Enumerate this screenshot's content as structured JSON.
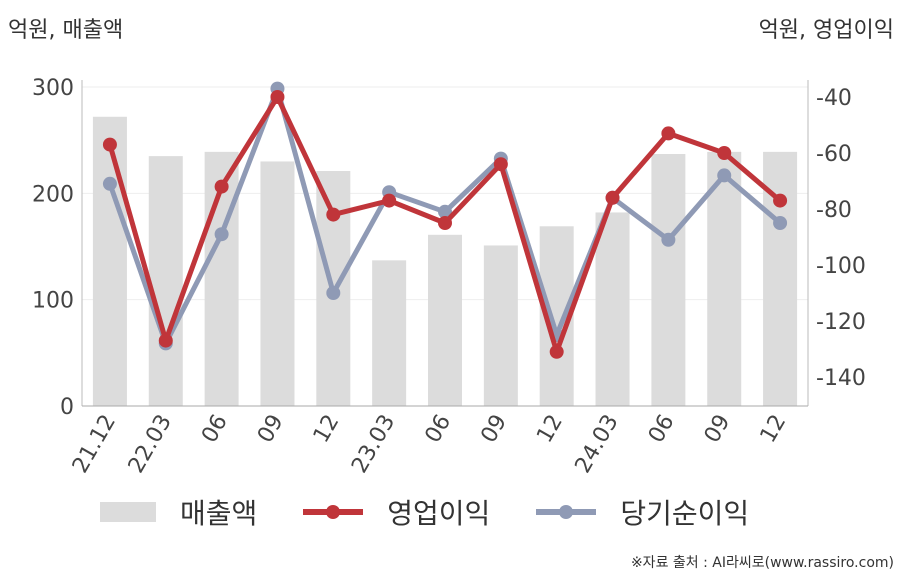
{
  "header": {
    "left_unit": "억원, 매출액",
    "right_unit": "억원, 영업이익"
  },
  "legend": {
    "revenue": "매출액",
    "operating_profit": "영업이익",
    "net_income": "당기순이익"
  },
  "source": "※자료 출처 : AI라씨로(www.rassiro.com)",
  "colors": {
    "revenue": "#dcdcdc",
    "operating_profit": "#c0353a",
    "net_income": "#8f9ab5"
  },
  "chart_data": {
    "type": "bar",
    "categories": [
      "21.12",
      "22.03",
      "06",
      "09",
      "12",
      "23.03",
      "06",
      "09",
      "12",
      "24.03",
      "06",
      "09",
      "12"
    ],
    "left_axis": {
      "ylim": [
        0,
        300
      ],
      "ticks": [
        "0",
        "100",
        "200",
        "300"
      ]
    },
    "right_axis": {
      "ylim": [
        -150,
        -35
      ],
      "ticks": [
        "-40",
        "-60",
        "-80",
        "-100",
        "-120",
        "-140"
      ]
    },
    "series": [
      {
        "name": "매출액",
        "axis": "left",
        "type": "bar",
        "values": [
          272,
          235,
          239,
          230,
          221,
          137,
          161,
          151,
          169,
          182,
          237,
          239,
          239
        ]
      },
      {
        "name": "영업이익",
        "axis": "right",
        "type": "line",
        "values": [
          -57,
          -127,
          -72,
          -40,
          -82,
          -77,
          -85,
          -64,
          -131,
          -76,
          -53,
          -60,
          -77
        ]
      },
      {
        "name": "당기순이익",
        "axis": "right",
        "type": "line",
        "values": [
          -71,
          -128,
          -89,
          -37,
          -110,
          -74,
          -81,
          -62,
          -125,
          -76,
          -91,
          -68,
          -85
        ]
      }
    ]
  }
}
